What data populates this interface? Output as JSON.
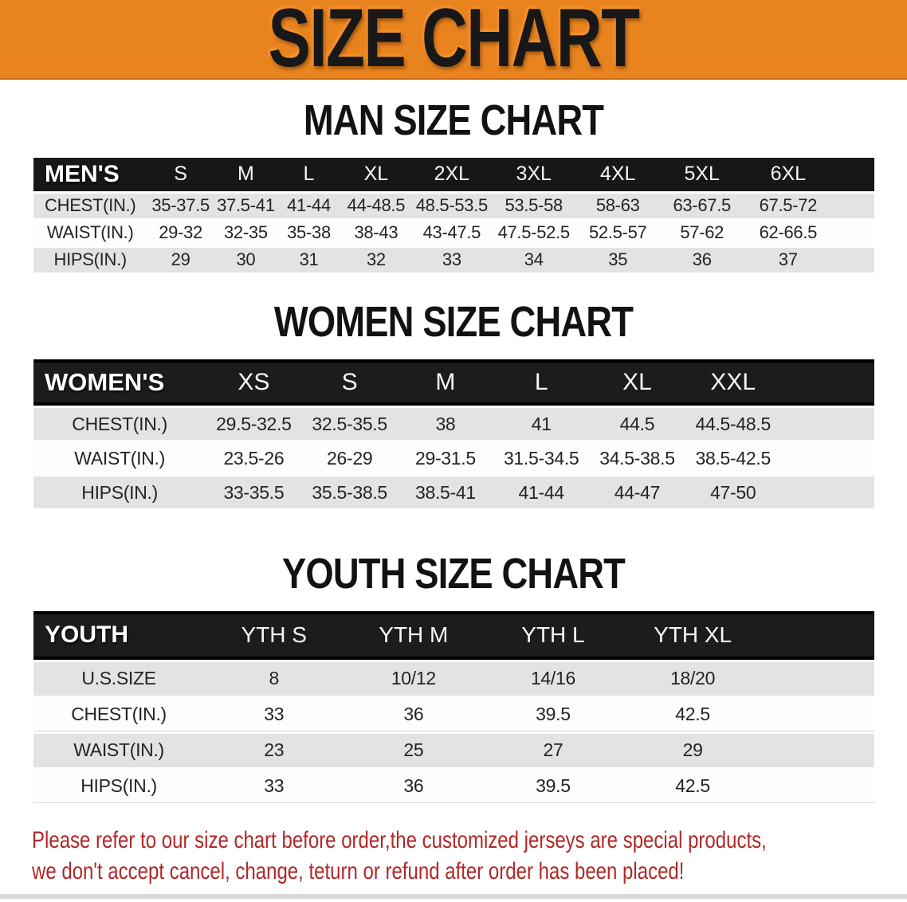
{
  "banner": {
    "title": "SIZE CHART"
  },
  "sections": [
    {
      "heading": "MAN SIZE CHART",
      "table": {
        "label": "MEN'S",
        "sizes": [
          "S",
          "M",
          "L",
          "XL",
          "2XL",
          "3XL",
          "4XL",
          "5XL",
          "6XL"
        ],
        "rows": [
          {
            "label": "CHEST(IN.)",
            "values": [
              "35-37.5",
              "37.5-41",
              "41-44",
              "44-48.5",
              "48.5-53.5",
              "53.5-58",
              "58-63",
              "63-67.5",
              "67.5-72"
            ]
          },
          {
            "label": "WAIST(IN.)",
            "values": [
              "29-32",
              "32-35",
              "35-38",
              "38-43",
              "43-47.5",
              "47.5-52.5",
              "52.5-57",
              "57-62",
              "62-66.5"
            ]
          },
          {
            "label": "HIPS(IN.)",
            "values": [
              "29",
              "30",
              "31",
              "32",
              "33",
              "34",
              "35",
              "36",
              "37"
            ]
          }
        ]
      }
    },
    {
      "heading": "WOMEN SIZE CHART",
      "table": {
        "label": "WOMEN'S",
        "sizes": [
          "XS",
          "S",
          "M",
          "L",
          "XL",
          "XXL"
        ],
        "rows": [
          {
            "label": "CHEST(IN.)",
            "values": [
              "29.5-32.5",
              "32.5-35.5",
              "38",
              "41",
              "44.5",
              "44.5-48.5"
            ]
          },
          {
            "label": "WAIST(IN.)",
            "values": [
              "23.5-26",
              "26-29",
              "29-31.5",
              "31.5-34.5",
              "34.5-38.5",
              "38.5-42.5"
            ]
          },
          {
            "label": "HIPS(IN.)",
            "values": [
              "33-35.5",
              "35.5-38.5",
              "38.5-41",
              "41-44",
              "44-47",
              "47-50"
            ]
          }
        ]
      }
    },
    {
      "heading": "YOUTH SIZE CHART",
      "table": {
        "label": "YOUTH",
        "sizes": [
          "YTH S",
          "YTH M",
          "YTH L",
          "YTH XL"
        ],
        "rows": [
          {
            "label": "U.S.SIZE",
            "values": [
              "8",
              "10/12",
              "14/16",
              "18/20"
            ]
          },
          {
            "label": "CHEST(IN.)",
            "values": [
              "33",
              "36",
              "39.5",
              "42.5"
            ]
          },
          {
            "label": "WAIST(IN.)",
            "values": [
              "23",
              "25",
              "27",
              "29"
            ]
          },
          {
            "label": "HIPS(IN.)",
            "values": [
              "33",
              "36",
              "39.5",
              "42.5"
            ]
          }
        ]
      }
    }
  ],
  "disclaimer": {
    "line1": "Please refer to our size chart before order,the customized jerseys are special products,",
    "line2": "we don't accept cancel, change, teturn or refund after order has been placed!"
  },
  "colors": {
    "banner_orange": "#E8831E",
    "header_black": "#171717",
    "row_gray": "#E1E3E4",
    "disclaimer_red": "#B22727"
  }
}
